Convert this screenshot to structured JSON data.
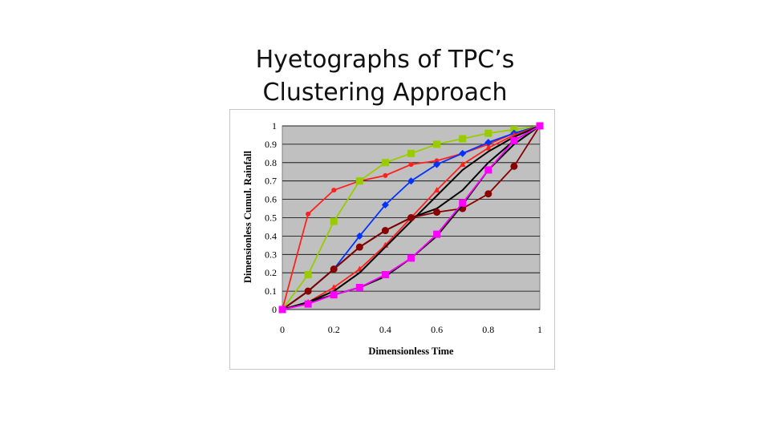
{
  "slide": {
    "title_line1": "Hyetographs of TPC’s",
    "title_line2": "Clustering Approach"
  },
  "chart_data": {
    "type": "line",
    "xlabel": "Dimensionless Time",
    "ylabel": "Dimensionless Cumul. Rainfall",
    "xlim": [
      0,
      1
    ],
    "ylim": [
      0,
      1
    ],
    "x_ticks": [
      "0",
      "0.2",
      "0.4",
      "0.6",
      "0.8",
      "1"
    ],
    "y_ticks": [
      "0",
      "0.1",
      "0.2",
      "0.3",
      "0.4",
      "0.5",
      "0.6",
      "0.7",
      "0.8",
      "0.9",
      "1"
    ],
    "grid": true,
    "plot_background": "#c0c0c0",
    "series": [
      {
        "color": "#ff2020",
        "marker": "circle",
        "x": [
          0,
          0.1,
          0.2,
          0.3,
          0.4,
          0.5,
          0.6,
          0.7,
          0.8,
          0.9,
          1
        ],
        "y": [
          0,
          0.52,
          0.65,
          0.7,
          0.73,
          0.79,
          0.81,
          0.85,
          0.9,
          0.96,
          1
        ]
      },
      {
        "color": "#99cc00",
        "marker": "square",
        "x": [
          0,
          0.1,
          0.2,
          0.3,
          0.4,
          0.5,
          0.6,
          0.7,
          0.8,
          0.9,
          1
        ],
        "y": [
          0,
          0.19,
          0.48,
          0.7,
          0.8,
          0.85,
          0.9,
          0.93,
          0.96,
          0.98,
          1
        ]
      },
      {
        "color": "#0033ff",
        "marker": "diamond",
        "x": [
          0,
          0.1,
          0.2,
          0.3,
          0.4,
          0.5,
          0.6,
          0.7,
          0.8,
          0.9,
          1
        ],
        "y": [
          0,
          0.1,
          0.22,
          0.4,
          0.57,
          0.7,
          0.79,
          0.85,
          0.91,
          0.96,
          1
        ]
      },
      {
        "color": "#000000",
        "marker": "none",
        "x": [
          0,
          0.1,
          0.2,
          0.3,
          0.4,
          0.5,
          0.6,
          0.7,
          0.8,
          0.9,
          1
        ],
        "y": [
          0,
          0.1,
          0.22,
          0.34,
          0.43,
          0.5,
          0.55,
          0.65,
          0.8,
          0.92,
          1
        ]
      },
      {
        "color": "#ff2020",
        "marker": "triangle",
        "x": [
          0,
          0.1,
          0.2,
          0.3,
          0.4,
          0.5,
          0.6,
          0.7,
          0.8,
          0.9,
          1
        ],
        "y": [
          0,
          0.04,
          0.12,
          0.22,
          0.35,
          0.5,
          0.65,
          0.79,
          0.88,
          0.95,
          1
        ]
      },
      {
        "color": "#000000",
        "marker": "none",
        "x": [
          0,
          0.1,
          0.2,
          0.3,
          0.4,
          0.5,
          0.6,
          0.7,
          0.8,
          0.9,
          1
        ],
        "y": [
          0,
          0.04,
          0.1,
          0.2,
          0.34,
          0.48,
          0.62,
          0.76,
          0.86,
          0.94,
          1
        ]
      },
      {
        "color": "#880000",
        "marker": "circle",
        "x": [
          0,
          0.1,
          0.2,
          0.3,
          0.4,
          0.5,
          0.6,
          0.7,
          0.8,
          0.9,
          1
        ],
        "y": [
          0,
          0.1,
          0.22,
          0.34,
          0.43,
          0.5,
          0.53,
          0.55,
          0.63,
          0.78,
          1
        ]
      },
      {
        "color": "#000000",
        "marker": "none",
        "x": [
          0,
          0.1,
          0.2,
          0.3,
          0.4,
          0.5,
          0.6,
          0.7,
          0.8,
          0.9,
          1
        ],
        "y": [
          0,
          0.04,
          0.08,
          0.12,
          0.18,
          0.28,
          0.4,
          0.57,
          0.76,
          0.9,
          1
        ]
      },
      {
        "color": "#ff00ff",
        "marker": "square",
        "x": [
          0,
          0.1,
          0.2,
          0.3,
          0.4,
          0.5,
          0.6,
          0.7,
          0.8,
          0.9,
          1
        ],
        "y": [
          0,
          0.03,
          0.08,
          0.12,
          0.19,
          0.28,
          0.41,
          0.58,
          0.76,
          0.92,
          1
        ]
      }
    ]
  }
}
